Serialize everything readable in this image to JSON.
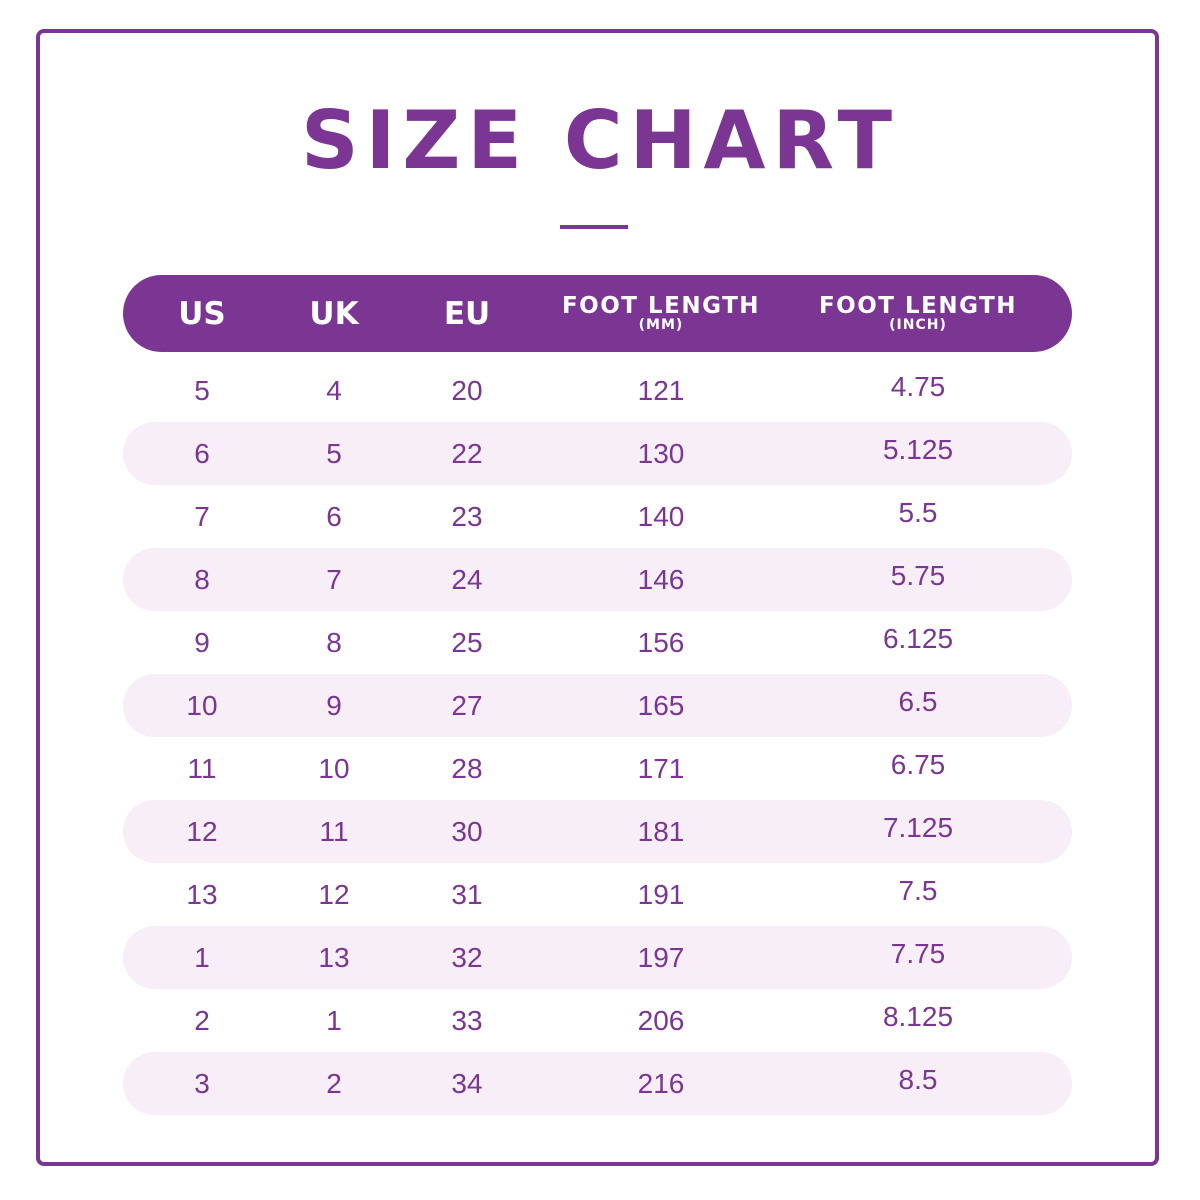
{
  "title": "SIZE CHART",
  "colors": {
    "accent": "#7b3592",
    "stripe": "#f8eef8",
    "header_text": "#ffffff"
  },
  "headers": [
    {
      "main": "US",
      "sub": ""
    },
    {
      "main": "UK",
      "sub": ""
    },
    {
      "main": "EU",
      "sub": ""
    },
    {
      "main": "FOOT LENGTH",
      "sub": "(MM)"
    },
    {
      "main": "FOOT LENGTH",
      "sub": "(INCH)"
    }
  ],
  "rows": [
    {
      "us": "5",
      "uk": "4",
      "eu": "20",
      "mm": "121",
      "inch": "4.75"
    },
    {
      "us": "6",
      "uk": "5",
      "eu": "22",
      "mm": "130",
      "inch": "5.125"
    },
    {
      "us": "7",
      "uk": "6",
      "eu": "23",
      "mm": "140",
      "inch": "5.5"
    },
    {
      "us": "8",
      "uk": "7",
      "eu": "24",
      "mm": "146",
      "inch": "5.75"
    },
    {
      "us": "9",
      "uk": "8",
      "eu": "25",
      "mm": "156",
      "inch": "6.125"
    },
    {
      "us": "10",
      "uk": "9",
      "eu": "27",
      "mm": "165",
      "inch": "6.5"
    },
    {
      "us": "11",
      "uk": "10",
      "eu": "28",
      "mm": "171",
      "inch": "6.75"
    },
    {
      "us": "12",
      "uk": "11",
      "eu": "30",
      "mm": "181",
      "inch": "7.125"
    },
    {
      "us": "13",
      "uk": "12",
      "eu": "31",
      "mm": "191",
      "inch": "7.5"
    },
    {
      "us": "1",
      "uk": "13",
      "eu": "32",
      "mm": "197",
      "inch": "7.75"
    },
    {
      "us": "2",
      "uk": "1",
      "eu": "33",
      "mm": "206",
      "inch": "8.125"
    },
    {
      "us": "3",
      "uk": "2",
      "eu": "34",
      "mm": "216",
      "inch": "8.5"
    }
  ]
}
